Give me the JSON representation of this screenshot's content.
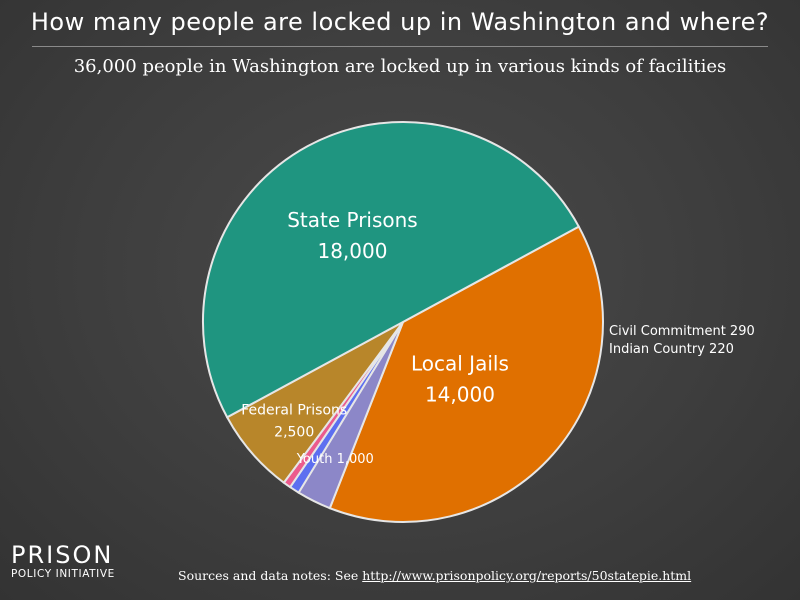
{
  "title": "How many people are locked up in Washington and where?",
  "subtitle": "36,000 people in Washington are locked up in various kinds of facilities",
  "chart_data": {
    "type": "pie",
    "slices": [
      {
        "name": "Local Jails",
        "value": 14000,
        "value_label": "14,000",
        "color": "#e07000"
      },
      {
        "name": "Youth",
        "value": 1000,
        "value_label": "1,000",
        "color": "#8c87c8"
      },
      {
        "name": "Civil Commitment",
        "value": 290,
        "value_label": "290",
        "color": "#5d6ff0"
      },
      {
        "name": "Indian Country",
        "value": 220,
        "value_label": "220",
        "color": "#ec5b8d"
      },
      {
        "name": "Federal Prisons",
        "value": 2500,
        "value_label": "2,500",
        "color": "#b8862a"
      },
      {
        "name": "State Prisons",
        "value": 18000,
        "value_label": "18,000",
        "color": "#1f9580"
      }
    ]
  },
  "logo": {
    "main": "PRISON",
    "sub": "POLICY INITIATIVE"
  },
  "source": {
    "prefix": "Sources and data notes: See ",
    "link": "http://www.prisonpolicy.org/reports/50statepie.html"
  }
}
